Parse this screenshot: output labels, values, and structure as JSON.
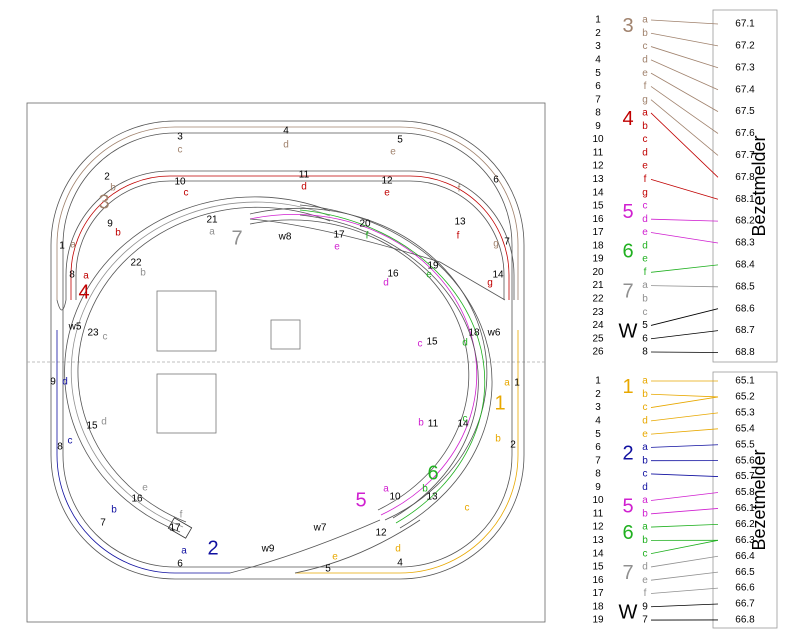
{
  "track_plan": {
    "labels": [
      {
        "text": "3",
        "color": "#000000"
      },
      {
        "text": "c",
        "color": "#a0826d"
      },
      {
        "text": "4",
        "color": "#000000"
      },
      {
        "text": "d",
        "color": "#a0826d"
      },
      {
        "text": "5",
        "color": "#000000"
      },
      {
        "text": "e",
        "color": "#a0826d"
      },
      {
        "text": "2",
        "color": "#000000"
      },
      {
        "text": "b",
        "color": "#a0826d"
      },
      {
        "text": "6",
        "color": "#000000"
      },
      {
        "text": "f",
        "color": "#a0826d"
      },
      {
        "text": "1",
        "color": "#000000"
      },
      {
        "text": "a",
        "color": "#a0826d"
      },
      {
        "text": "7",
        "color": "#000000"
      },
      {
        "text": "g",
        "color": "#a0826d"
      },
      {
        "text": "10",
        "color": "#000000"
      },
      {
        "text": "c",
        "color": "#c00000"
      },
      {
        "text": "11",
        "color": "#000000"
      },
      {
        "text": "d",
        "color": "#c00000"
      },
      {
        "text": "12",
        "color": "#000000"
      },
      {
        "text": "e",
        "color": "#c00000"
      },
      {
        "text": "9",
        "color": "#000000"
      },
      {
        "text": "b",
        "color": "#c00000"
      },
      {
        "text": "13",
        "color": "#000000"
      },
      {
        "text": "f",
        "color": "#c00000"
      },
      {
        "text": "8",
        "color": "#000000"
      },
      {
        "text": "a",
        "color": "#c00000"
      },
      {
        "text": "14",
        "color": "#000000"
      },
      {
        "text": "g",
        "color": "#c00000"
      },
      {
        "text": "21",
        "color": "#000000"
      },
      {
        "text": "a",
        "color": "#909090"
      },
      {
        "text": "w8",
        "color": "#000000"
      },
      {
        "text": "20",
        "color": "#000000"
      },
      {
        "text": "f",
        "color": "#20b020"
      },
      {
        "text": "17",
        "color": "#000000"
      },
      {
        "text": "e",
        "color": "#d020d0"
      },
      {
        "text": "22",
        "color": "#000000"
      },
      {
        "text": "b",
        "color": "#909090"
      },
      {
        "text": "19",
        "color": "#000000"
      },
      {
        "text": "e",
        "color": "#20b020"
      },
      {
        "text": "16",
        "color": "#000000"
      },
      {
        "text": "d",
        "color": "#d020d0"
      },
      {
        "text": "23",
        "color": "#000000"
      },
      {
        "text": "c",
        "color": "#909090"
      },
      {
        "text": "w5",
        "color": "#000000"
      },
      {
        "text": "18",
        "color": "#000000"
      },
      {
        "text": "w6",
        "color": "#000000"
      },
      {
        "text": "15",
        "color": "#000000"
      },
      {
        "text": "c",
        "color": "#d020d0"
      },
      {
        "text": "d",
        "color": "#20b020"
      },
      {
        "text": "9",
        "color": "#000000"
      },
      {
        "text": "d",
        "color": "#1010a0"
      },
      {
        "text": "1",
        "color": "#000000"
      },
      {
        "text": "a",
        "color": "#e8a800"
      },
      {
        "text": "15",
        "color": "#000000"
      },
      {
        "text": "d",
        "color": "#909090"
      },
      {
        "text": "11",
        "color": "#000000"
      },
      {
        "text": "b",
        "color": "#d020d0"
      },
      {
        "text": "14",
        "color": "#000000"
      },
      {
        "text": "c",
        "color": "#20b020"
      },
      {
        "text": "8",
        "color": "#000000"
      },
      {
        "text": "c",
        "color": "#1010a0"
      },
      {
        "text": "2",
        "color": "#000000"
      },
      {
        "text": "b",
        "color": "#e8a800"
      },
      {
        "text": "e",
        "color": "#909090"
      },
      {
        "text": "16",
        "color": "#000000"
      },
      {
        "text": "a",
        "color": "#d020d0"
      },
      {
        "text": "10",
        "color": "#000000"
      },
      {
        "text": "b",
        "color": "#20b020"
      },
      {
        "text": "13",
        "color": "#000000"
      },
      {
        "text": "c",
        "color": "#e8a800"
      },
      {
        "text": "f",
        "color": "#909090"
      },
      {
        "text": "b",
        "color": "#1010a0"
      },
      {
        "text": "7",
        "color": "#000000"
      },
      {
        "text": "17",
        "color": "#000000"
      },
      {
        "text": "w7",
        "color": "#000000"
      },
      {
        "text": "12",
        "color": "#000000"
      },
      {
        "text": "a",
        "color": "#1010a0"
      },
      {
        "text": "w9",
        "color": "#000000"
      },
      {
        "text": "d",
        "color": "#e8a800"
      },
      {
        "text": "e",
        "color": "#e8a800"
      },
      {
        "text": "6",
        "color": "#000000"
      },
      {
        "text": "4",
        "color": "#000000"
      },
      {
        "text": "5",
        "color": "#000000"
      }
    ],
    "group_labels": [
      {
        "text": "3",
        "color": "#a0826d"
      },
      {
        "text": "4",
        "color": "#c00000"
      },
      {
        "text": "7",
        "color": "#909090"
      },
      {
        "text": "1",
        "color": "#e8a800"
      },
      {
        "text": "6",
        "color": "#20b020"
      },
      {
        "text": "5",
        "color": "#d020d0"
      },
      {
        "text": "2",
        "color": "#1010a0"
      }
    ]
  },
  "top_table": {
    "title": "Bezetmelder",
    "rows": [
      "1",
      "2",
      "3",
      "4",
      "5",
      "6",
      "7",
      "8",
      "9",
      "10",
      "11",
      "12",
      "13",
      "14",
      "15",
      "16",
      "17",
      "18",
      "19",
      "20",
      "21",
      "22",
      "23",
      "24",
      "25",
      "26"
    ],
    "groups": [
      {
        "label": "3",
        "color": "#a0826d",
        "letters": [
          "a",
          "b",
          "c",
          "d",
          "e",
          "f",
          "g"
        ]
      },
      {
        "label": "4",
        "color": "#c00000",
        "letters": [
          "a",
          "b",
          "c",
          "d",
          "e",
          "f",
          "g"
        ]
      },
      {
        "label": "5",
        "color": "#d020d0",
        "letters": [
          "c",
          "d",
          "e"
        ]
      },
      {
        "label": "6",
        "color": "#20b020",
        "letters": [
          "d",
          "e",
          "f"
        ]
      },
      {
        "label": "7",
        "color": "#909090",
        "letters": [
          "a",
          "b",
          "c"
        ]
      },
      {
        "label": "W",
        "color": "#000000",
        "letters": [
          "5",
          "6",
          "8"
        ]
      }
    ],
    "values": [
      "67.1",
      "67.2",
      "67.3",
      "67.4",
      "67.5",
      "67.6",
      "67.7",
      "67.8",
      "68.1",
      "68.2",
      "68.3",
      "68.4",
      "68.5",
      "68.6",
      "68.7",
      "68.8"
    ]
  },
  "bottom_table": {
    "title": "Bezetmelder",
    "rows": [
      "1",
      "2",
      "3",
      "4",
      "5",
      "6",
      "7",
      "8",
      "9",
      "10",
      "11",
      "12",
      "13",
      "14",
      "15",
      "16",
      "17",
      "18",
      "19"
    ],
    "groups": [
      {
        "label": "1",
        "color": "#e8a800",
        "letters": [
          "a",
          "b",
          "c",
          "d",
          "e"
        ]
      },
      {
        "label": "2",
        "color": "#1010a0",
        "letters": [
          "a",
          "b",
          "c",
          "d"
        ]
      },
      {
        "label": "5",
        "color": "#d020d0",
        "letters": [
          "a",
          "b"
        ]
      },
      {
        "label": "6",
        "color": "#20b020",
        "letters": [
          "a",
          "b",
          "c"
        ]
      },
      {
        "label": "7",
        "color": "#909090",
        "letters": [
          "d",
          "e",
          "f"
        ]
      },
      {
        "label": "W",
        "color": "#000000",
        "letters": [
          "9",
          "7"
        ]
      }
    ],
    "values": [
      "65.1",
      "65.2",
      "65.3",
      "65.4",
      "65.5",
      "65.6",
      "65.7",
      "65.8",
      "66.1",
      "66.2",
      "66.3",
      "66.4",
      "66.5",
      "66.6",
      "66.7",
      "66.8"
    ]
  }
}
